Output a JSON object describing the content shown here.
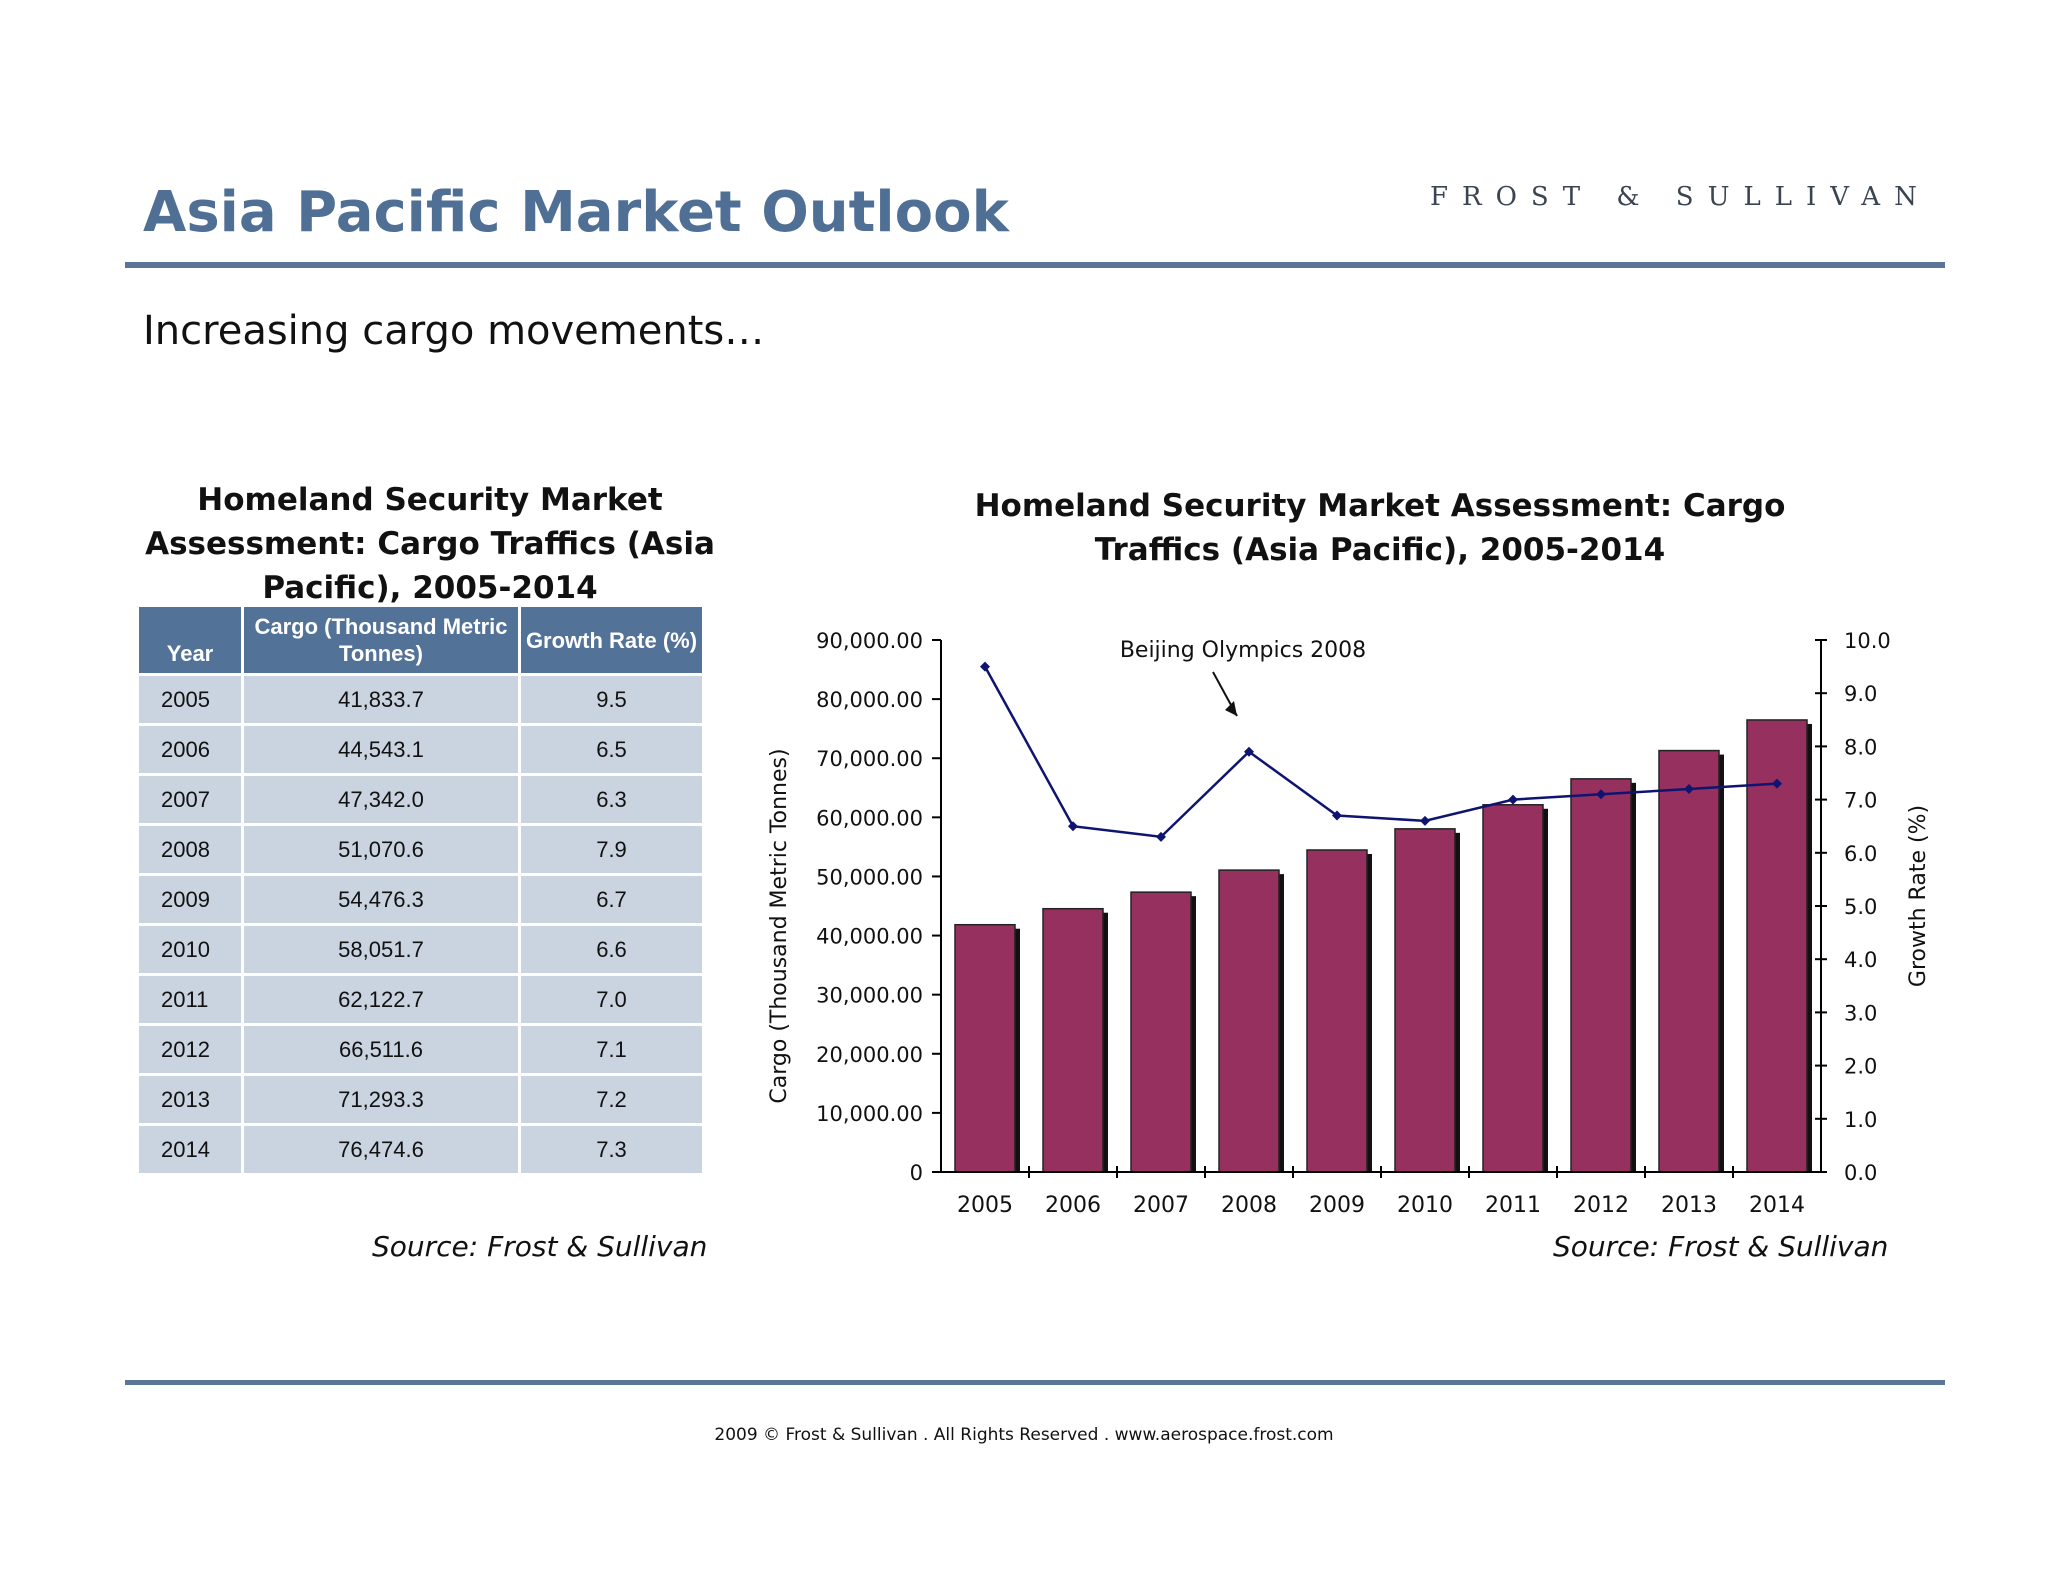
{
  "header": {
    "title": "Asia Pacific Market Outlook",
    "brand": "FROST & SULLIVAN",
    "subtitle": "Increasing cargo movements…"
  },
  "table": {
    "title": "Homeland Security Market Assessment: Cargo Traffics (Asia Pacific), 2005-2014",
    "headers": [
      "Year",
      "Cargo (Thousand Metric Tonnes)",
      "Growth Rate (%)"
    ],
    "rows": [
      [
        "2005",
        "41,833.7",
        "9.5"
      ],
      [
        "2006",
        "44,543.1",
        "6.5"
      ],
      [
        "2007",
        "47,342.0",
        "6.3"
      ],
      [
        "2008",
        "51,070.6",
        "7.9"
      ],
      [
        "2009",
        "54,476.3",
        "6.7"
      ],
      [
        "2010",
        "58,051.7",
        "6.6"
      ],
      [
        "2011",
        "62,122.7",
        "7.0"
      ],
      [
        "2012",
        "66,511.6",
        "7.1"
      ],
      [
        "2013",
        "71,293.3",
        "7.2"
      ],
      [
        "2014",
        "76,474.6",
        "7.3"
      ]
    ],
    "source": "Source: Frost & Sullivan"
  },
  "chart_data": {
    "type": "bar",
    "title": "Homeland Security Market Assessment: Cargo Traffics (Asia Pacific), 2005-2014",
    "categories": [
      "2005",
      "2006",
      "2007",
      "2008",
      "2009",
      "2010",
      "2011",
      "2012",
      "2013",
      "2014"
    ],
    "series": [
      {
        "type": "bar",
        "axis": "left",
        "values": [
          41833.7,
          44543.1,
          47342.0,
          51070.6,
          54476.3,
          58051.7,
          62122.7,
          66511.6,
          71293.3,
          76474.6
        ],
        "color": "#96305f"
      },
      {
        "type": "line",
        "axis": "right",
        "values": [
          9.5,
          6.5,
          6.3,
          7.9,
          6.7,
          6.6,
          7.0,
          7.1,
          7.2,
          7.3
        ],
        "color": "#0f1470"
      }
    ],
    "ylabel": "Cargo (Thousand Metric Tonnes)",
    "y2label": "Growth Rate (%)",
    "ylim": [
      0,
      90000
    ],
    "y2lim": [
      0,
      10
    ],
    "yticks": [
      "0",
      "10,000.00",
      "20,000.00",
      "30,000.00",
      "40,000.00",
      "50,000.00",
      "60,000.00",
      "70,000.00",
      "80,000.00",
      "90,000.00"
    ],
    "y2ticks": [
      "0.0",
      "1.0",
      "2.0",
      "3.0",
      "4.0",
      "5.0",
      "6.0",
      "7.0",
      "8.0",
      "9.0",
      "10.0"
    ],
    "annotation": {
      "text": "Beijing Olympics 2008",
      "category": "2008"
    },
    "grid": false,
    "source": "Source: Frost & Sullivan"
  },
  "footer": {
    "text": "2009 © Frost & Sullivan . All Rights Reserved . www.aerospace.frost.com"
  }
}
